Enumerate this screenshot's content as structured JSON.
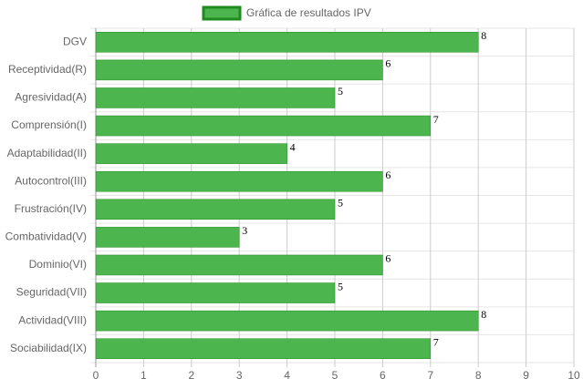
{
  "chart_data": {
    "type": "bar",
    "orientation": "horizontal",
    "categories": [
      "DGV",
      "Receptividad(R)",
      "Agresividad(A)",
      "Comprensión(I)",
      "Adaptabilidad(II)",
      "Autocontrol(III)",
      "Frustración(IV)",
      "Combatividad(V)",
      "Dominio(VI)",
      "Seguridad(VII)",
      "Actividad(VIII)",
      "Sociabilidad(IX)"
    ],
    "series": [
      {
        "name": "Gráfica de resultados IPV",
        "color": "#4db54d",
        "border_color": "#1f8a1f",
        "values": [
          8,
          6,
          5,
          7,
          4,
          6,
          5,
          3,
          6,
          5,
          8,
          7
        ]
      }
    ],
    "xlim": [
      0,
      10
    ],
    "xticks": [
      0,
      1,
      2,
      3,
      4,
      5,
      6,
      7,
      8,
      9,
      10
    ],
    "grid": true,
    "legend": "top"
  }
}
